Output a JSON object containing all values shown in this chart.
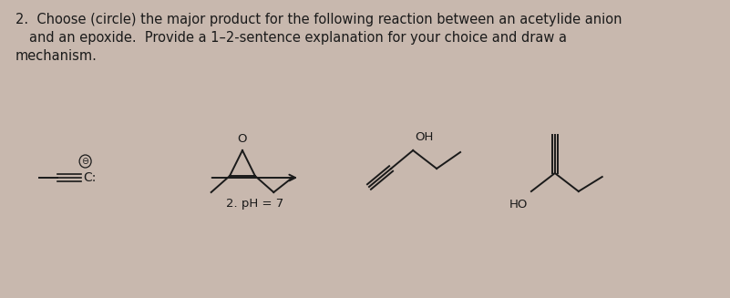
{
  "background_color": "#c8b8ae",
  "text_color": "#1a1a1a",
  "title_line1": "2.  Choose (circle) the major product for the following reaction between an acetylide anion",
  "title_line2": "and an epoxide.  Provide a 1–2-sentence explanation for your choice and draw a",
  "title_line3": "mechanism.",
  "label_pH": "2. pH = 7",
  "label_OH1": "OH",
  "label_HO2": "HO",
  "label_anion_charge": "⊖",
  "font_size_title": 10.5,
  "font_size_label": 9.5,
  "lw": 1.4
}
